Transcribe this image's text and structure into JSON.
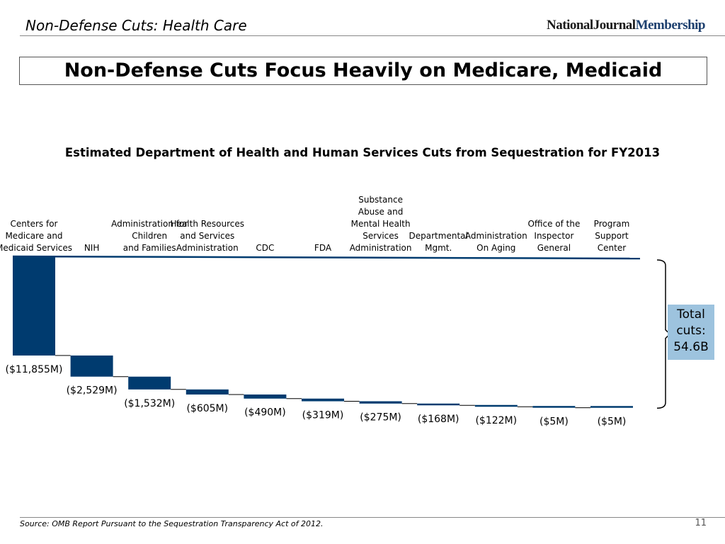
{
  "header": {
    "section": "Non-Defense Cuts: Health Care",
    "logo": "NationalJournalMembership"
  },
  "title": "Non-Defense Cuts Focus Heavily on Medicare, Medicaid",
  "footer": {
    "source": "Source: OMB Report Pursuant to the Sequestration Transparency Act of 2012.",
    "page": "11"
  },
  "total_label": "Total cuts: 54.6B",
  "colors": {
    "bar": "#003b6f",
    "total_box": "#9dc3de"
  },
  "chart_data": {
    "type": "waterfall",
    "title": "Estimated Department of Health and Human Services Cuts from Sequestration for FY2013",
    "categories": [
      "Centers for\nMedicare and\nMedicaid Services",
      "NIH",
      "Administration for\nChildren\nand Families",
      "Health Resources\nand Services\nAdministration",
      "CDC",
      "FDA",
      "Substance\nAbuse and\nMental Health\nServices\nAdministration",
      "Departmental\nMgmt.",
      "Administration\nOn Aging",
      "Office of the\nInspector\nGeneral",
      "Program\nSupport\nCenter"
    ],
    "values": [
      -11855,
      -2529,
      -1532,
      -605,
      -490,
      -319,
      -275,
      -168,
      -122,
      -5,
      -5
    ],
    "data_labels": [
      "($11,855M)",
      "($2,529M)",
      "($1,532M)",
      "($605M)",
      "($490M)",
      "($319M)",
      "($275M)",
      "($168M)",
      "($122M)",
      "($5M)",
      "($5M)"
    ],
    "units": "millions of dollars"
  }
}
